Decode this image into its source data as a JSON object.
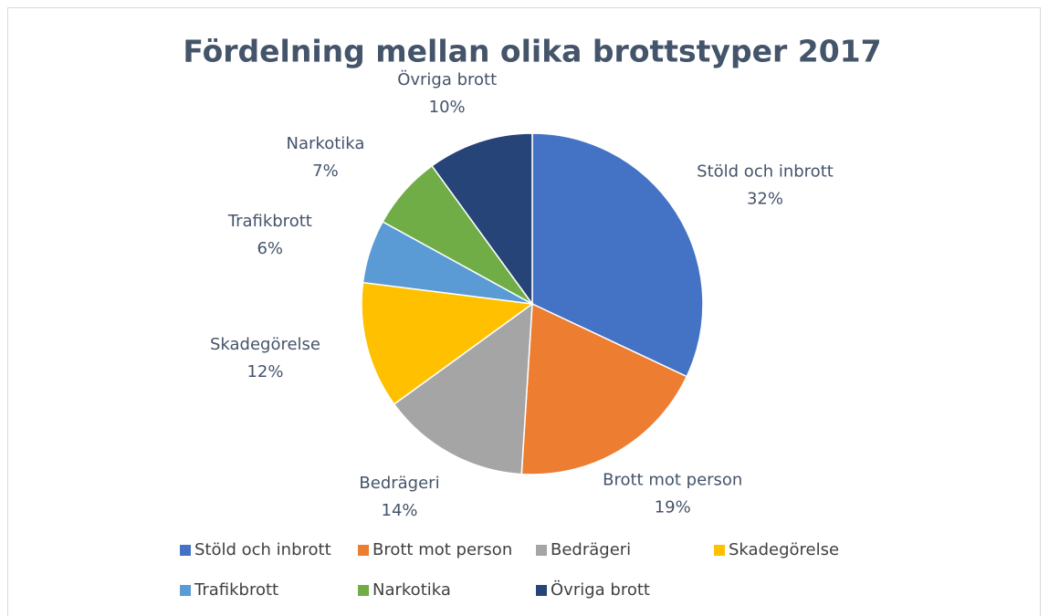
{
  "chart_data": {
    "type": "pie",
    "title": "Fördelning mellan olika brottstyper 2017",
    "categories": [
      "Stöld och inbrott",
      "Brott mot person",
      "Bedrägeri",
      "Skadegörelse",
      "Trafikbrott",
      "Narkotika",
      "Övriga brott"
    ],
    "values": [
      32,
      19,
      14,
      12,
      6,
      7,
      10
    ],
    "value_labels": [
      "32%",
      "19%",
      "14%",
      "12%",
      "6%",
      "7%",
      "10%"
    ],
    "colors": [
      "#4472c4",
      "#ed7d31",
      "#a5a5a5",
      "#ffc000",
      "#5b9bd5",
      "#70ad47",
      "#264478"
    ],
    "legend": "bottom"
  }
}
